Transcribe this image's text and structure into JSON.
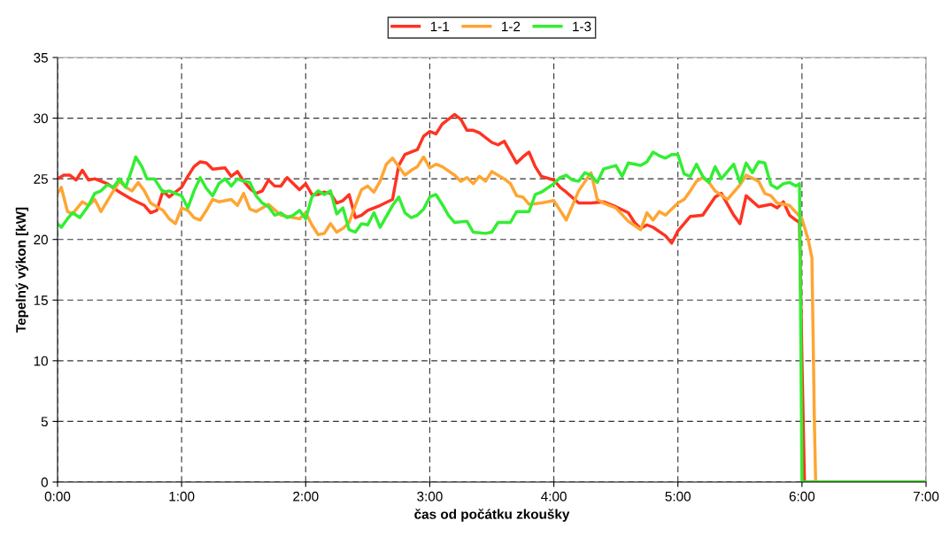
{
  "chart_data": {
    "type": "line",
    "xlabel": "čas od počátku zkoušky",
    "ylabel": "Tepelný výkon [kW]",
    "xlim": [
      0,
      7
    ],
    "xticks": [
      {
        "value": 0,
        "label": "0:00"
      },
      {
        "value": 1,
        "label": "1:00"
      },
      {
        "value": 2,
        "label": "2:00"
      },
      {
        "value": 3,
        "label": "3:00"
      },
      {
        "value": 4,
        "label": "4:00"
      },
      {
        "value": 5,
        "label": "5:00"
      },
      {
        "value": 6,
        "label": "6:00"
      },
      {
        "value": 7,
        "label": "7:00"
      }
    ],
    "ylim": [
      0,
      35
    ],
    "yticks": [
      0,
      5,
      10,
      15,
      20,
      25,
      30,
      35
    ],
    "grid": true,
    "legend": "top",
    "marker": "none",
    "line_style": "solid",
    "series": [
      {
        "name": "1-1",
        "color": "#ff3322",
        "x": [
          0,
          0.05,
          0.1,
          0.15,
          0.2,
          0.25,
          0.3,
          0.4,
          0.5,
          0.6,
          0.7,
          0.75,
          0.8,
          0.85,
          0.9,
          1.0,
          1.05,
          1.1,
          1.15,
          1.2,
          1.25,
          1.35,
          1.4,
          1.45,
          1.5,
          1.55,
          1.6,
          1.65,
          1.7,
          1.75,
          1.8,
          1.85,
          1.95,
          2.0,
          2.05,
          2.1,
          2.15,
          2.2,
          2.25,
          2.3,
          2.35,
          2.4,
          2.45,
          2.5,
          2.6,
          2.7,
          2.75,
          2.8,
          2.9,
          2.95,
          3.0,
          3.05,
          3.1,
          3.2,
          3.25,
          3.3,
          3.35,
          3.4,
          3.5,
          3.55,
          3.6,
          3.7,
          3.75,
          3.8,
          3.85,
          3.9,
          4.0,
          4.05,
          4.1,
          4.2,
          4.3,
          4.4,
          4.5,
          4.6,
          4.65,
          4.7,
          4.75,
          4.8,
          4.9,
          4.95,
          5.0,
          5.1,
          5.2,
          5.3,
          5.35,
          5.45,
          5.5,
          5.55,
          5.65,
          5.75,
          5.8,
          5.85,
          5.9,
          5.95,
          5.98,
          6.0,
          6.02,
          7.0
        ],
        "values": [
          25.0,
          25.3,
          25.3,
          24.9,
          25.7,
          24.9,
          25.0,
          24.6,
          23.9,
          23.3,
          22.8,
          22.2,
          22.4,
          24.0,
          23.5,
          24.3,
          25.2,
          26.0,
          26.4,
          26.3,
          25.8,
          25.9,
          25.2,
          25.6,
          24.8,
          24.2,
          23.8,
          24.0,
          24.9,
          24.4,
          24.4,
          25.1,
          24.1,
          24.6,
          23.7,
          23.7,
          23.9,
          23.8,
          23.0,
          23.2,
          23.7,
          21.8,
          22.0,
          22.4,
          22.8,
          23.3,
          26.1,
          27.0,
          27.4,
          28.5,
          28.9,
          28.7,
          29.5,
          30.3,
          29.9,
          29.0,
          29.0,
          28.8,
          28.0,
          27.8,
          28.1,
          26.3,
          26.8,
          27.2,
          26.0,
          25.2,
          24.9,
          24.3,
          23.9,
          23.0,
          23.0,
          23.1,
          22.7,
          22.2,
          21.4,
          20.9,
          21.2,
          21.0,
          20.3,
          19.7,
          20.7,
          21.9,
          22.0,
          23.5,
          23.8,
          22.0,
          21.3,
          23.6,
          22.7,
          22.9,
          22.6,
          23.1,
          22.0,
          21.6,
          21.4,
          10.0,
          0,
          0
        ]
      },
      {
        "name": "1-2",
        "color": "#ffa533",
        "x": [
          0,
          0.03,
          0.08,
          0.12,
          0.2,
          0.25,
          0.3,
          0.35,
          0.45,
          0.5,
          0.55,
          0.6,
          0.65,
          0.7,
          0.75,
          0.8,
          0.85,
          0.9,
          0.95,
          1.0,
          1.05,
          1.1,
          1.15,
          1.2,
          1.25,
          1.3,
          1.4,
          1.45,
          1.5,
          1.55,
          1.6,
          1.7,
          1.8,
          1.9,
          1.95,
          2.0,
          2.05,
          2.1,
          2.15,
          2.2,
          2.25,
          2.3,
          2.35,
          2.4,
          2.45,
          2.5,
          2.55,
          2.6,
          2.65,
          2.7,
          2.75,
          2.8,
          2.85,
          2.9,
          2.95,
          3.0,
          3.05,
          3.1,
          3.2,
          3.25,
          3.3,
          3.35,
          3.4,
          3.45,
          3.5,
          3.6,
          3.65,
          3.7,
          3.75,
          3.8,
          3.9,
          4.0,
          4.05,
          4.1,
          4.15,
          4.2,
          4.3,
          4.35,
          4.4,
          4.5,
          4.6,
          4.7,
          4.75,
          4.8,
          4.85,
          4.9,
          5.0,
          5.05,
          5.1,
          5.15,
          5.2,
          5.25,
          5.3,
          5.4,
          5.5,
          5.55,
          5.65,
          5.7,
          5.75,
          5.8,
          5.9,
          6.0,
          6.05,
          6.08,
          6.1,
          6.11,
          7.0
        ],
        "values": [
          23.8,
          24.3,
          22.3,
          22.1,
          23.1,
          22.8,
          23.3,
          22.3,
          24.0,
          24.8,
          24.3,
          24.0,
          24.7,
          24.0,
          23.0,
          22.7,
          22.4,
          21.7,
          21.3,
          22.6,
          22.4,
          21.8,
          21.6,
          22.4,
          23.3,
          23.1,
          23.3,
          22.8,
          23.8,
          22.5,
          22.3,
          22.9,
          22.0,
          21.8,
          21.7,
          22.2,
          21.2,
          20.4,
          20.5,
          21.3,
          20.6,
          20.9,
          21.4,
          22.8,
          24.1,
          24.4,
          23.9,
          24.8,
          26.2,
          26.7,
          26.0,
          25.3,
          25.7,
          26.0,
          26.8,
          25.9,
          26.2,
          26.0,
          25.3,
          24.8,
          25.1,
          24.6,
          25.2,
          24.8,
          25.6,
          25.0,
          24.6,
          23.6,
          23.5,
          22.9,
          23.0,
          23.2,
          22.4,
          21.6,
          22.8,
          24.0,
          25.5,
          23.3,
          23.0,
          22.6,
          21.5,
          20.8,
          22.2,
          21.6,
          22.3,
          22.0,
          23.0,
          23.3,
          24.0,
          24.8,
          25.1,
          24.7,
          24.0,
          23.3,
          24.5,
          25.3,
          24.8,
          23.8,
          23.6,
          23.0,
          22.8,
          21.7,
          20.0,
          18.5,
          5.0,
          0,
          0
        ]
      },
      {
        "name": "1-3",
        "color": "#33ee33",
        "x": [
          0,
          0.03,
          0.08,
          0.12,
          0.18,
          0.25,
          0.3,
          0.35,
          0.4,
          0.45,
          0.5,
          0.55,
          0.6,
          0.63,
          0.68,
          0.72,
          0.78,
          0.85,
          0.9,
          0.95,
          1.0,
          1.05,
          1.1,
          1.15,
          1.2,
          1.25,
          1.3,
          1.35,
          1.4,
          1.45,
          1.5,
          1.55,
          1.6,
          1.65,
          1.7,
          1.75,
          1.8,
          1.85,
          1.9,
          1.95,
          2.0,
          2.05,
          2.1,
          2.15,
          2.2,
          2.25,
          2.3,
          2.35,
          2.4,
          2.45,
          2.5,
          2.55,
          2.6,
          2.65,
          2.7,
          2.75,
          2.8,
          2.85,
          2.9,
          2.95,
          3.0,
          3.05,
          3.1,
          3.15,
          3.2,
          3.3,
          3.35,
          3.45,
          3.5,
          3.55,
          3.65,
          3.7,
          3.8,
          3.85,
          3.9,
          4.0,
          4.05,
          4.1,
          4.15,
          4.2,
          4.25,
          4.3,
          4.35,
          4.4,
          4.5,
          4.55,
          4.6,
          4.7,
          4.75,
          4.8,
          4.85,
          4.9,
          4.95,
          5.0,
          5.05,
          5.1,
          5.15,
          5.2,
          5.25,
          5.3,
          5.35,
          5.45,
          5.5,
          5.55,
          5.6,
          5.65,
          5.7,
          5.75,
          5.8,
          5.85,
          5.9,
          5.95,
          5.98,
          6.0,
          7.0
        ],
        "values": [
          21.3,
          21.0,
          21.7,
          22.2,
          21.8,
          22.8,
          23.8,
          24.0,
          24.5,
          24.3,
          25.0,
          24.3,
          25.8,
          26.8,
          26.0,
          25.0,
          25.0,
          23.9,
          24.0,
          23.8,
          23.6,
          22.6,
          24.0,
          25.1,
          24.2,
          23.6,
          24.6,
          25.0,
          24.4,
          25.0,
          24.8,
          24.7,
          23.6,
          23.0,
          22.7,
          22.0,
          22.2,
          21.8,
          22.0,
          22.4,
          21.7,
          23.5,
          24.0,
          23.7,
          24.0,
          22.1,
          22.6,
          20.8,
          20.6,
          21.3,
          21.2,
          22.2,
          21.0,
          21.9,
          22.8,
          23.5,
          22.2,
          21.8,
          22.0,
          22.5,
          23.5,
          23.7,
          22.9,
          22.0,
          21.4,
          21.5,
          20.6,
          20.5,
          20.6,
          21.4,
          21.4,
          22.3,
          22.3,
          23.7,
          23.9,
          24.6,
          25.1,
          25.3,
          24.9,
          24.8,
          25.5,
          25.3,
          24.7,
          25.8,
          26.1,
          25.2,
          26.3,
          26.1,
          26.4,
          27.2,
          26.9,
          26.7,
          27.0,
          27.0,
          25.4,
          25.2,
          26.2,
          25.2,
          24.7,
          26.0,
          25.0,
          26.2,
          24.7,
          26.3,
          25.5,
          26.4,
          26.3,
          24.5,
          24.2,
          24.6,
          24.7,
          24.4,
          24.6,
          0,
          0
        ]
      }
    ]
  }
}
